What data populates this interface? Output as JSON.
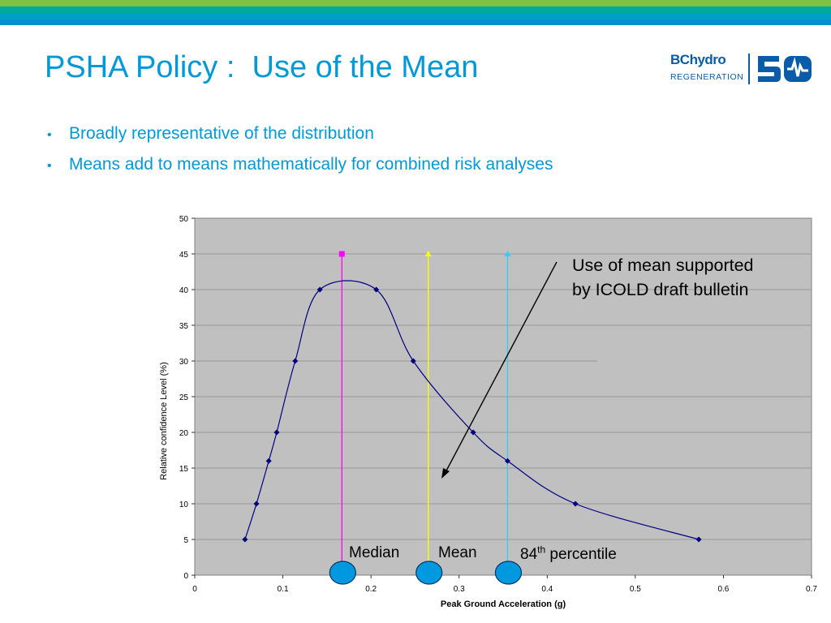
{
  "slide": {
    "title": "PSHA Policy :  Use of the Mean",
    "bullets": [
      "Broadly representative of the distribution",
      "Means add to means mathematically for combined risk analyses"
    ],
    "logo": {
      "brand_bc": "BC",
      "brand_hydro": "hydro",
      "sub": "REGENERATION",
      "anniversary": "50"
    },
    "colors": {
      "title": "#0099d8",
      "plot_bg": "#c0c0c0",
      "curve": "#000080"
    }
  },
  "annotations": {
    "callout_line1": "Use of mean supported",
    "callout_line2": "by ICOLD draft bulletin",
    "median": "Median",
    "mean": "Mean",
    "p84_num": "84",
    "p84_sup": "th",
    "p84_rest": " percentile"
  },
  "chart_data": {
    "type": "line",
    "xlabel": "Peak Ground Acceleration (g)",
    "ylabel": "Relative confidence Level (%)",
    "xlim": [
      0,
      0.7
    ],
    "ylim": [
      0,
      50
    ],
    "xticks": [
      "0",
      "0.1",
      "0.2",
      "0.3",
      "0.4",
      "0.5",
      "0.6",
      "0.7"
    ],
    "yticks": [
      "0",
      "5",
      "10",
      "15",
      "20",
      "25",
      "30",
      "35",
      "40",
      "45",
      "50"
    ],
    "grid": true,
    "series": [
      {
        "x": [
          0.057,
          0.07,
          0.084,
          0.093,
          0.114,
          0.142,
          0.206,
          0.248,
          0.316,
          0.355,
          0.432,
          0.572
        ],
        "y": [
          5,
          10,
          16,
          20,
          30,
          40,
          40,
          30,
          20,
          16,
          10,
          5
        ]
      }
    ],
    "vertical_lines": [
      {
        "label": "Median",
        "x": 0.167,
        "y_top": 45,
        "color": "#ff00ff",
        "marker": "square"
      },
      {
        "label": "Mean",
        "x": 0.265,
        "y_top": 45,
        "color": "#ffff00",
        "marker": "triangle"
      },
      {
        "label": "84th percentile",
        "x": 0.355,
        "y_top": 45,
        "color": "#33ccff",
        "marker": "triangle"
      }
    ],
    "ovals": {
      "fill": "#0099e0",
      "stroke": "#003366"
    }
  }
}
